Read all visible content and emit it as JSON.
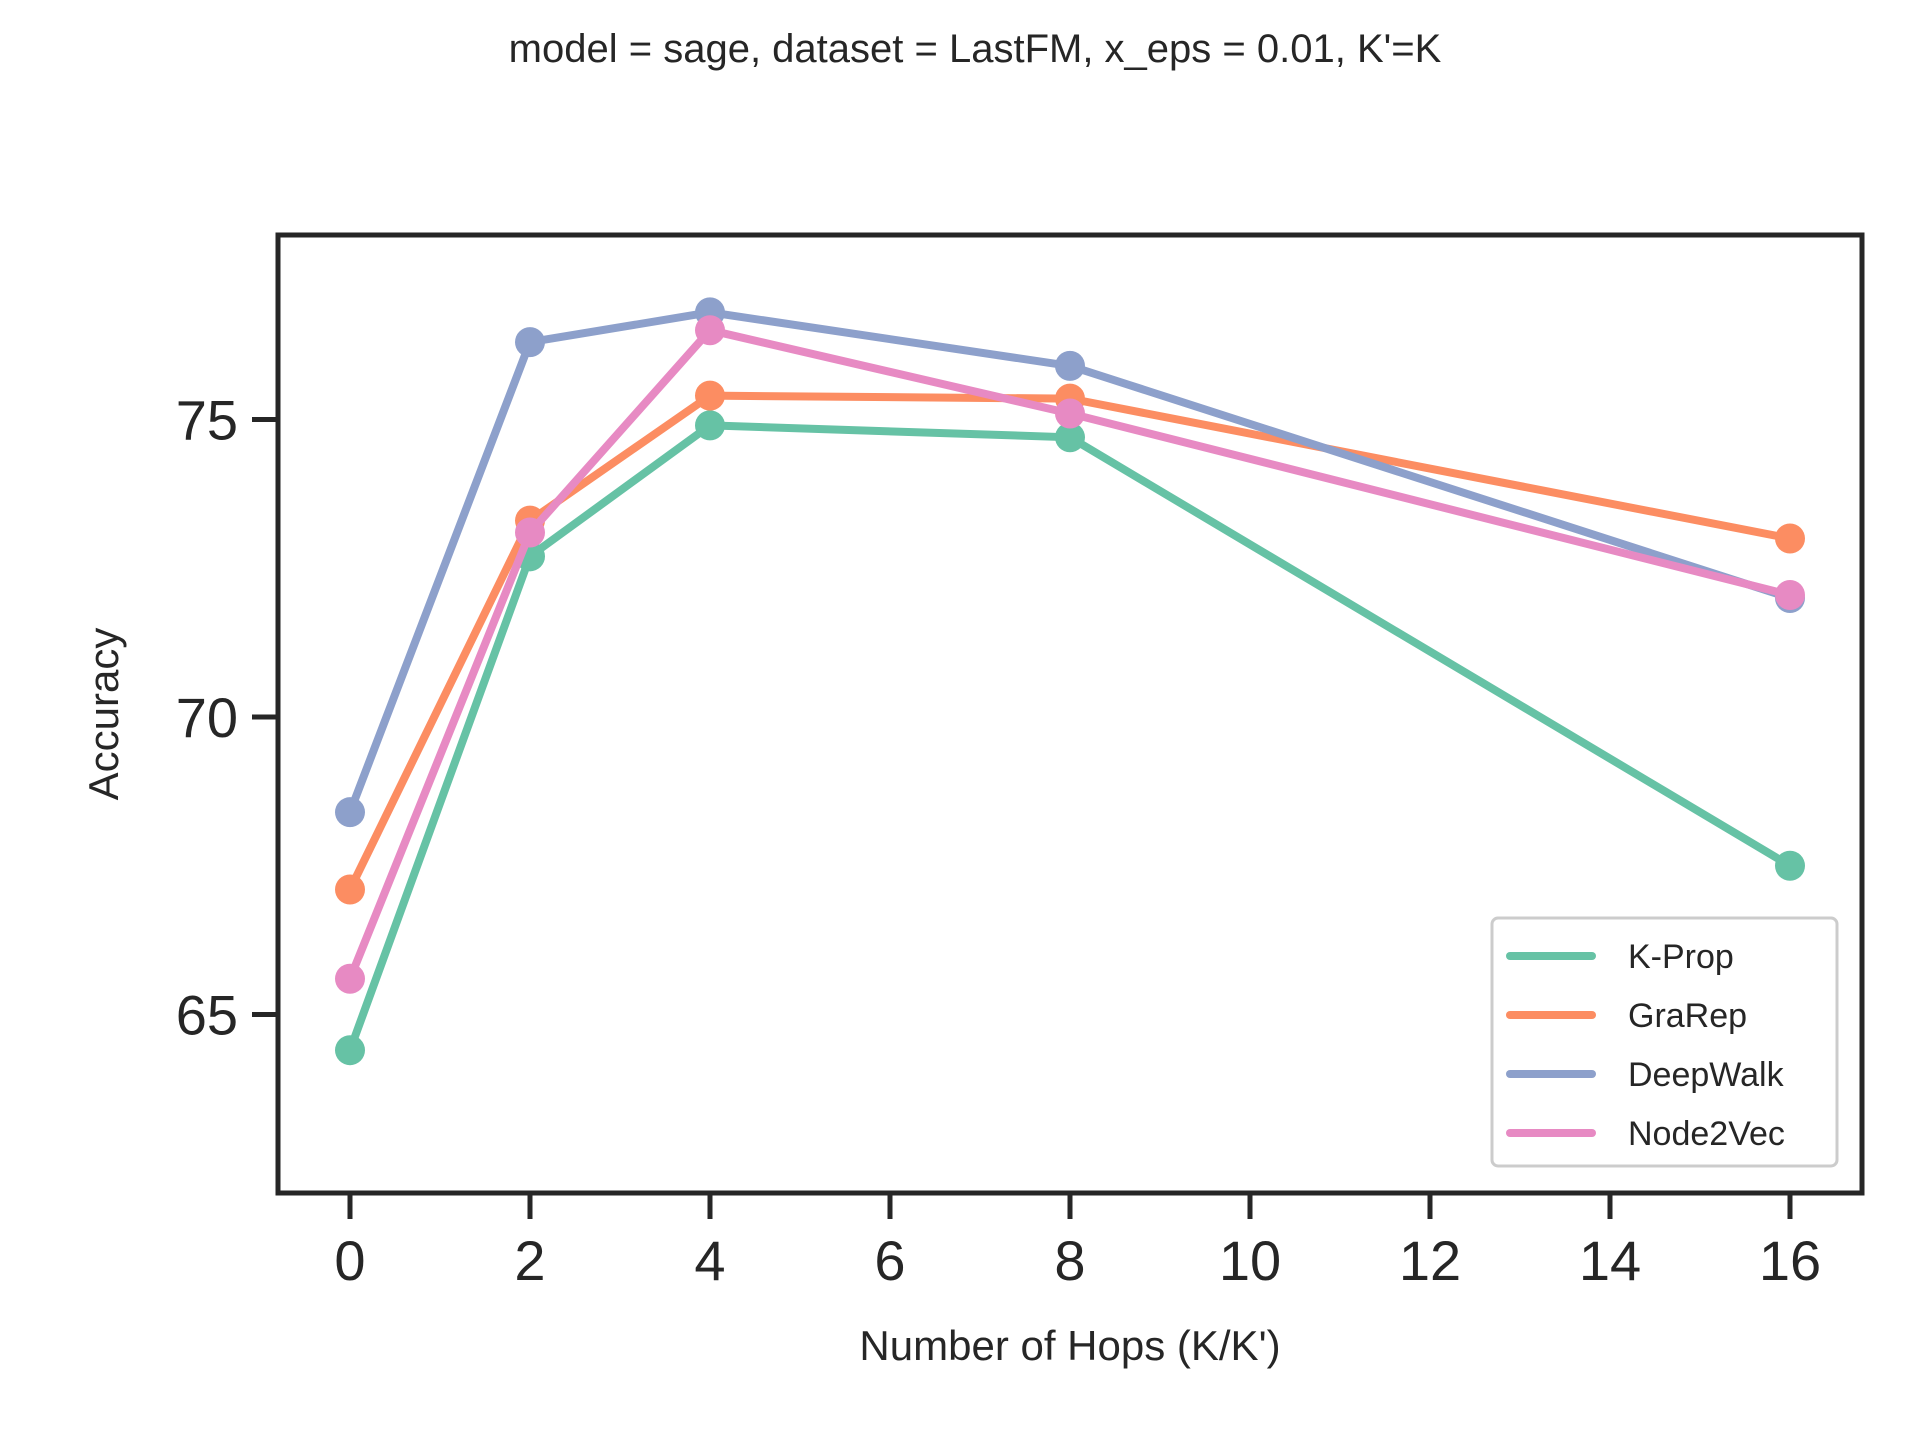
{
  "chart_data": {
    "type": "line",
    "title": "model = sage,  dataset = LastFM, x_eps = 0.01, K'=K",
    "xlabel": "Number of Hops (K/K')",
    "ylabel": "Accuracy",
    "x": [
      0,
      2,
      4,
      8,
      16
    ],
    "xlim": [
      -0.8,
      16.8
    ],
    "ylim": [
      62.0,
      78.1
    ],
    "xticks": [
      0,
      2,
      4,
      6,
      8,
      10,
      12,
      14,
      16
    ],
    "yticks": [
      65,
      70,
      75
    ],
    "xtick_labels": [
      "0",
      "2",
      "4",
      "6",
      "8",
      "10",
      "12",
      "14",
      "16"
    ],
    "ytick_labels": [
      "65",
      "70",
      "75"
    ],
    "grid": false,
    "legend_position": "bottom-right",
    "series": [
      {
        "name": "K-Prop",
        "color": "#66c2a5",
        "values": [
          64.4,
          72.7,
          74.9,
          74.7,
          67.5
        ]
      },
      {
        "name": "GraRep",
        "color": "#fc8d62",
        "values": [
          67.1,
          73.3,
          75.4,
          75.35,
          73.0
        ]
      },
      {
        "name": "DeepWalk",
        "color": "#8da0cb",
        "values": [
          68.4,
          76.3,
          76.8,
          75.9,
          72.0
        ]
      },
      {
        "name": "Node2Vec",
        "color": "#e78ac3",
        "values": [
          65.6,
          73.1,
          76.5,
          75.1,
          72.05
        ]
      }
    ]
  }
}
